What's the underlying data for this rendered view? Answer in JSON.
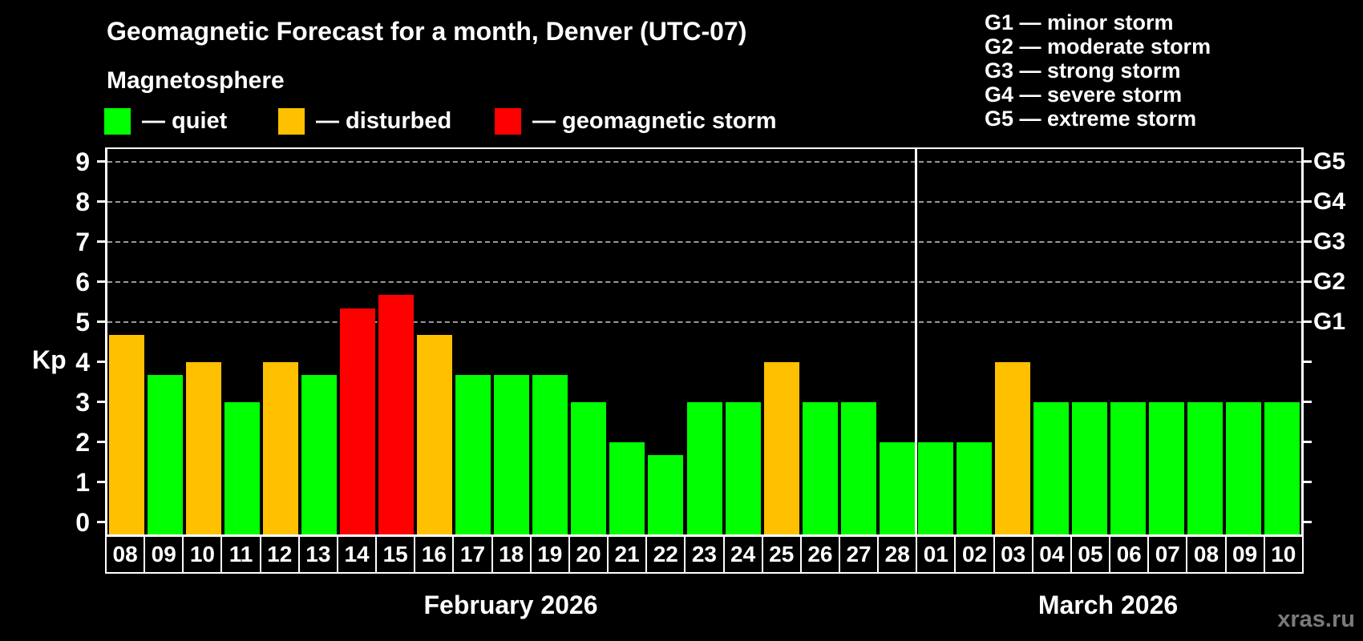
{
  "title": "Geomagnetic Forecast for a month, Denver (UTC-07)",
  "subtitle": "Magnetosphere",
  "watermark": "xras.ru",
  "colors": {
    "quiet": "#00ff00",
    "disturbed": "#ffc000",
    "storm": "#ff0000",
    "axis": "#ffffff",
    "gridline": "#999999",
    "background": "#000000",
    "watermark": "#7a7a7a"
  },
  "legend": {
    "items": [
      {
        "status": "quiet",
        "label": "— quiet"
      },
      {
        "status": "disturbed",
        "label": "— disturbed"
      },
      {
        "status": "storm",
        "label": "— geomagnetic storm"
      }
    ]
  },
  "storm_scale_legend": [
    {
      "text": "G1 — minor storm"
    },
    {
      "text": "G2 — moderate storm"
    },
    {
      "text": "G3 — strong storm"
    },
    {
      "text": "G4 — severe storm"
    },
    {
      "text": "G5 — extreme storm"
    }
  ],
  "chart_data": {
    "type": "bar",
    "title": "Geomagnetic Forecast for a month, Denver (UTC-07)",
    "subtitle": "Magnetosphere",
    "ylabel": "Kp",
    "ylim": [
      0,
      9.35
    ],
    "yticks": [
      0,
      1,
      2,
      3,
      4,
      5,
      6,
      7,
      8,
      9
    ],
    "gridlines_at_kp": [
      5,
      6,
      7,
      8,
      9
    ],
    "grid": "dashed, only at storm levels G1-G5",
    "right_axis_labels": [
      {
        "kp": 5,
        "text": "G1"
      },
      {
        "kp": 6,
        "text": "G2"
      },
      {
        "kp": 7,
        "text": "G3"
      },
      {
        "kp": 8,
        "text": "G4"
      },
      {
        "kp": 9,
        "text": "G5"
      }
    ],
    "months": [
      {
        "label": "February 2026",
        "key": "feb",
        "start_index": 0,
        "days": 21
      },
      {
        "label": "March 2026",
        "key": "mar",
        "start_index": 21,
        "days": 10
      }
    ],
    "bars": [
      {
        "day": "08",
        "kp": 4.67,
        "status": "disturbed"
      },
      {
        "day": "09",
        "kp": 3.67,
        "status": "quiet"
      },
      {
        "day": "10",
        "kp": 4.0,
        "status": "disturbed"
      },
      {
        "day": "11",
        "kp": 3.0,
        "status": "quiet"
      },
      {
        "day": "12",
        "kp": 4.0,
        "status": "disturbed"
      },
      {
        "day": "13",
        "kp": 3.67,
        "status": "quiet"
      },
      {
        "day": "14",
        "kp": 5.33,
        "status": "storm"
      },
      {
        "day": "15",
        "kp": 5.67,
        "status": "storm"
      },
      {
        "day": "16",
        "kp": 4.67,
        "status": "disturbed"
      },
      {
        "day": "17",
        "kp": 3.67,
        "status": "quiet"
      },
      {
        "day": "18",
        "kp": 3.67,
        "status": "quiet"
      },
      {
        "day": "19",
        "kp": 3.67,
        "status": "quiet"
      },
      {
        "day": "20",
        "kp": 3.0,
        "status": "quiet"
      },
      {
        "day": "21",
        "kp": 2.0,
        "status": "quiet"
      },
      {
        "day": "22",
        "kp": 1.67,
        "status": "quiet"
      },
      {
        "day": "23",
        "kp": 3.0,
        "status": "quiet"
      },
      {
        "day": "24",
        "kp": 3.0,
        "status": "quiet"
      },
      {
        "day": "25",
        "kp": 4.0,
        "status": "disturbed"
      },
      {
        "day": "26",
        "kp": 3.0,
        "status": "quiet"
      },
      {
        "day": "27",
        "kp": 3.0,
        "status": "quiet"
      },
      {
        "day": "28",
        "kp": 2.0,
        "status": "quiet"
      },
      {
        "day": "01",
        "kp": 2.0,
        "status": "quiet"
      },
      {
        "day": "02",
        "kp": 2.0,
        "status": "quiet"
      },
      {
        "day": "03",
        "kp": 4.0,
        "status": "disturbed"
      },
      {
        "day": "04",
        "kp": 3.0,
        "status": "quiet"
      },
      {
        "day": "05",
        "kp": 3.0,
        "status": "quiet"
      },
      {
        "day": "06",
        "kp": 3.0,
        "status": "quiet"
      },
      {
        "day": "07",
        "kp": 3.0,
        "status": "quiet"
      },
      {
        "day": "08",
        "kp": 3.0,
        "status": "quiet"
      },
      {
        "day": "09",
        "kp": 3.0,
        "status": "quiet"
      },
      {
        "day": "10",
        "kp": 3.0,
        "status": "quiet"
      }
    ]
  }
}
